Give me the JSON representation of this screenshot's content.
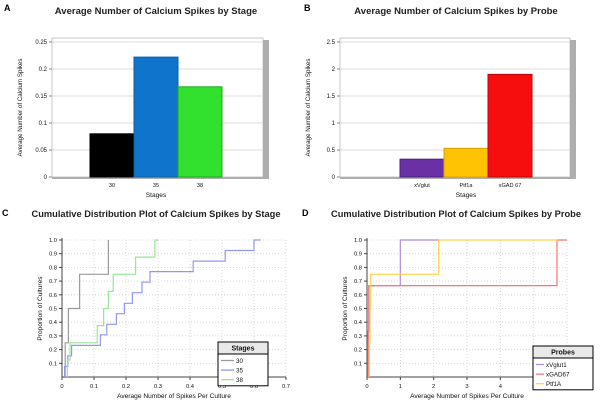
{
  "figure": {
    "panels": [
      {
        "letter": "A",
        "title": "Average Number of Calcium Spikes by Stage"
      },
      {
        "letter": "B",
        "title": "Average Number of Calcium Spikes by Probe"
      },
      {
        "letter": "C",
        "title": "Cumulative Distribution Plot of Calcium Spikes by Stage"
      },
      {
        "letter": "D",
        "title": "Cumulative Distribution Plot of Calcium Spikes by Probe"
      }
    ]
  },
  "chart_data": [
    {
      "type": "bar",
      "title": "Average Number of Calcium Spikes by Stage",
      "xlabel": "Stages",
      "ylabel": "Average Number of Calcium Spikes",
      "categories": [
        "30",
        "35",
        "38"
      ],
      "values": [
        0.08,
        0.222,
        0.167
      ],
      "bar_colors": [
        "#000000",
        "#0E74CC",
        "#32E12E"
      ],
      "bar_edge_colors": [
        "#000000",
        "#0A5CA4",
        "#20A51C"
      ],
      "ylim": [
        0,
        0.25
      ],
      "yticks": [
        "0",
        "0.05",
        "0.1",
        "0.15",
        "0.2",
        "0.25"
      ],
      "grid": "horizontal",
      "legend_position": "none"
    },
    {
      "type": "bar",
      "title": "Average Number of Calcium Spikes by Probe",
      "xlabel": "Stages",
      "ylabel": "Average Number of Calcium Spikes",
      "categories": [
        "xVglut",
        "Ptf1a",
        "xGAD 67"
      ],
      "values": [
        0.33,
        0.53,
        1.9
      ],
      "bar_colors": [
        "#6B30A5",
        "#FFC303",
        "#F60E0E"
      ],
      "bar_edge_colors": [
        "#4A2178",
        "#D89F00",
        "#BC0606"
      ],
      "ylim": [
        0,
        2.5
      ],
      "yticks": [
        "0",
        "0.5",
        "1",
        "1.5",
        "2",
        "2.5"
      ],
      "grid": "horizontal",
      "legend_position": "none"
    },
    {
      "type": "cdf",
      "title": "Cumulative Distribution Plot of Calcium Spikes by Stage",
      "xlabel": "Average Number of Spikes Per Culture",
      "ylabel": "Proportion of Cultures",
      "xlim": [
        0,
        0.7
      ],
      "ylim": [
        0,
        1.0
      ],
      "xticks": [
        "0",
        "0.1",
        "0.2",
        "0.3",
        "0.4",
        "0.5",
        "0.6",
        "0.7"
      ],
      "yticks": [
        "0.1",
        "0.2",
        "0.3",
        "0.4",
        "0.5",
        "0.6",
        "0.7",
        "0.8",
        "0.9",
        "1.0"
      ],
      "grid": "dotted",
      "legend_title": "Stages",
      "legend_position": "bottom-right",
      "series": [
        {
          "name": "30",
          "color": "#9B9B9B",
          "points": [
            [
              0.01,
              0.25
            ],
            [
              0.02,
              0.5
            ],
            [
              0.055,
              0.75
            ],
            [
              0.145,
              1.0
            ]
          ],
          "tail_to": 0.145
        },
        {
          "name": "35",
          "color": "#9398E8",
          "points": [
            [
              0.008,
              0.077
            ],
            [
              0.018,
              0.154
            ],
            [
              0.03,
              0.231
            ],
            [
              0.12,
              0.308
            ],
            [
              0.14,
              0.385
            ],
            [
              0.17,
              0.462
            ],
            [
              0.195,
              0.538
            ],
            [
              0.22,
              0.615
            ],
            [
              0.25,
              0.692
            ],
            [
              0.275,
              0.769
            ],
            [
              0.41,
              0.846
            ],
            [
              0.51,
              0.923
            ],
            [
              0.6,
              1.0
            ]
          ],
          "tail_to": 0.62
        },
        {
          "name": "38",
          "color": "#98E698",
          "points": [
            [
              0.017,
              0.125
            ],
            [
              0.025,
              0.25
            ],
            [
              0.11,
              0.375
            ],
            [
              0.13,
              0.5
            ],
            [
              0.145,
              0.625
            ],
            [
              0.16,
              0.75
            ],
            [
              0.23,
              0.875
            ],
            [
              0.29,
              1.0
            ]
          ],
          "tail_to": 0.3
        }
      ]
    },
    {
      "type": "cdf",
      "title": "Cumulative Distribution Plot of Calcium Spikes by Probe",
      "xlabel": "Average Number of Spikes Per Culture",
      "ylabel": "Proportion of Cultures",
      "xlim": [
        0,
        6
      ],
      "ylim": [
        0,
        1.0
      ],
      "xticks": [
        "0",
        "1",
        "2",
        "3",
        "4",
        "5",
        "6"
      ],
      "yticks": [
        "0.1",
        "0.2",
        "0.3",
        "0.4",
        "0.5",
        "0.6",
        "0.7",
        "0.8",
        "0.9",
        "1.0"
      ],
      "grid": "dotted",
      "legend_title": "Probes",
      "legend_position": "bottom-right",
      "series": [
        {
          "name": "xVglut1",
          "color": "#B28CD4",
          "points": [
            [
              0.03,
              0.333
            ],
            [
              0.05,
              0.667
            ],
            [
              1.0,
              1.0
            ]
          ],
          "tail_to": 2.15
        },
        {
          "name": "xGAD67",
          "color": "#F87670",
          "points": [
            [
              0.04,
              0.333
            ],
            [
              0.06,
              0.667
            ],
            [
              5.7,
              1.0
            ]
          ],
          "tail_to": 6.0
        },
        {
          "name": "Ptf1A",
          "color": "#FFD24B",
          "points": [
            [
              0.07,
              0.25
            ],
            [
              0.09,
              0.5
            ],
            [
              0.11,
              0.75
            ],
            [
              2.15,
              1.0
            ]
          ],
          "tail_to": 5.72
        }
      ]
    }
  ]
}
